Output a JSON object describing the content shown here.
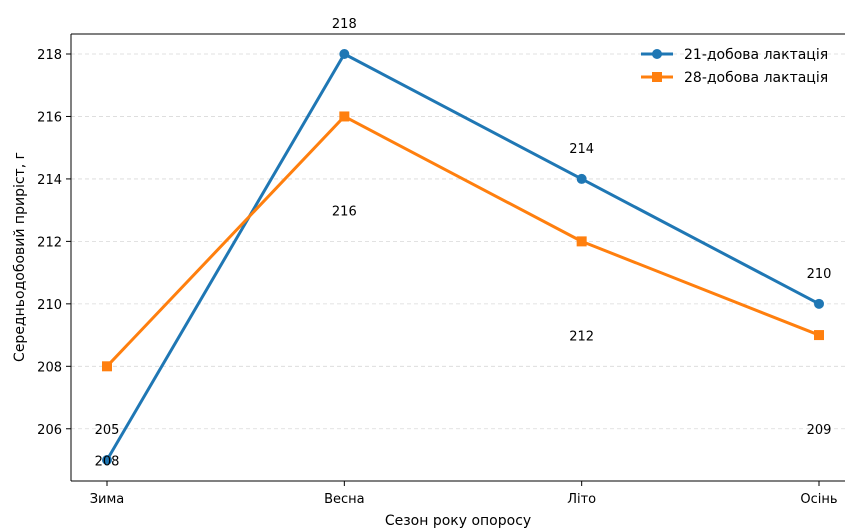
{
  "chart_data": {
    "type": "line",
    "title": "",
    "xlabel": "Сезон року опоросу",
    "ylabel": "Середньодобовий приріст, г",
    "categories": [
      "Зима",
      "Весна",
      "Літо",
      "Осінь"
    ],
    "ylim": [
      204.5,
      218.7
    ],
    "yticks": [
      206,
      208,
      210,
      212,
      214,
      216,
      218
    ],
    "grid": "horizontal-dashed",
    "legend_position": "top-right",
    "series": [
      {
        "name": "21-добова лактація",
        "values": [
          205,
          218,
          214,
          210
        ],
        "color": "#1f77b4",
        "marker": "circle",
        "data_labels": [
          "205",
          "218",
          "214",
          "210"
        ]
      },
      {
        "name": "28-добова лактація",
        "values": [
          208,
          216,
          212,
          209
        ],
        "color": "#ff7f0e",
        "marker": "square",
        "data_labels": [
          "208",
          "216",
          "212",
          "209"
        ]
      }
    ]
  }
}
